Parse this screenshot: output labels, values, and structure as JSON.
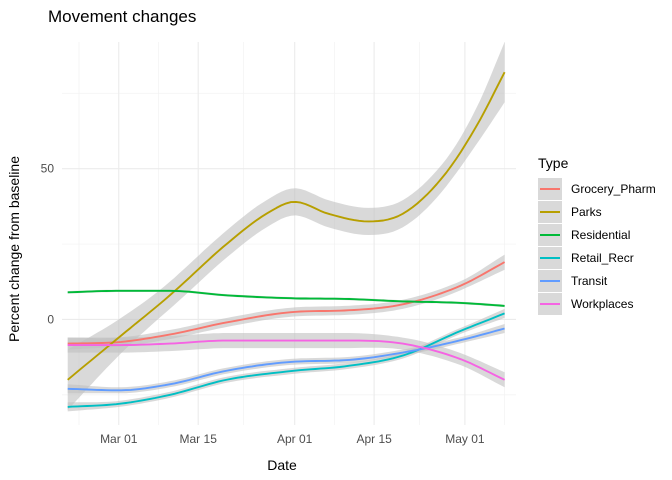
{
  "chart_data": {
    "type": "line",
    "title": "Movement changes",
    "xlabel": "Date",
    "ylabel": "Percent change from baseline",
    "x_type": "date",
    "xlim": [
      "2020-02-20",
      "2020-05-10"
    ],
    "ylim": [
      -35,
      92
    ],
    "x_ticks": [
      {
        "date": "2020-03-01",
        "label": "Mar 01"
      },
      {
        "date": "2020-03-15",
        "label": "Mar 15"
      },
      {
        "date": "2020-04-01",
        "label": "Apr 01"
      },
      {
        "date": "2020-04-15",
        "label": "Apr 15"
      },
      {
        "date": "2020-05-01",
        "label": "May 01"
      }
    ],
    "x_minor_ticks": [
      "2020-02-23",
      "2020-03-08",
      "2020-03-23",
      "2020-04-08",
      "2020-04-23",
      "2020-05-08"
    ],
    "y_ticks": [
      0,
      50
    ],
    "y_minor_ticks": [
      -25,
      25,
      75
    ],
    "grid": true,
    "confidence_band": true,
    "band_color": "#bfbfbf",
    "legend": {
      "title": "Type",
      "position": "right"
    },
    "series": [
      {
        "name": "Grocery_Pharm",
        "color": "#F8766D",
        "x": [
          "2020-02-21",
          "2020-03-01",
          "2020-03-10",
          "2020-03-20",
          "2020-04-01",
          "2020-04-10",
          "2020-04-20",
          "2020-04-30",
          "2020-05-08"
        ],
        "y": [
          -8,
          -7.5,
          -5,
          -1,
          2.5,
          3,
          5,
          11,
          19
        ],
        "band": [
          2,
          1.5,
          1.5,
          1.5,
          1.5,
          1.5,
          1.5,
          1.5,
          2.5
        ]
      },
      {
        "name": "Parks",
        "color": "#B79F00",
        "x": [
          "2020-02-21",
          "2020-03-01",
          "2020-03-10",
          "2020-03-20",
          "2020-03-27",
          "2020-04-01",
          "2020-04-07",
          "2020-04-14",
          "2020-04-20",
          "2020-04-27",
          "2020-05-03",
          "2020-05-08"
        ],
        "y": [
          -20,
          -6,
          8,
          25,
          35,
          39,
          35,
          32.5,
          35,
          47,
          64,
          82
        ],
        "band": [
          10,
          6,
          4.5,
          4.5,
          4.5,
          4.5,
          4.5,
          4.5,
          4.5,
          4.5,
          6,
          10
        ]
      },
      {
        "name": "Residential",
        "color": "#00BA38",
        "x": [
          "2020-02-21",
          "2020-03-01",
          "2020-03-10",
          "2020-03-20",
          "2020-04-01",
          "2020-04-10",
          "2020-04-20",
          "2020-04-30",
          "2020-05-08"
        ],
        "y": [
          9,
          9.5,
          9.5,
          8,
          7,
          6.8,
          6,
          5.5,
          4.5
        ],
        "band": [
          0.4,
          0.4,
          0.4,
          0.4,
          0.4,
          0.4,
          0.4,
          0.4,
          0.4
        ]
      },
      {
        "name": "Retail_Recr",
        "color": "#00BFC4",
        "x": [
          "2020-02-21",
          "2020-03-01",
          "2020-03-10",
          "2020-03-20",
          "2020-04-01",
          "2020-04-10",
          "2020-04-20",
          "2020-04-30",
          "2020-05-08"
        ],
        "y": [
          -29,
          -28,
          -25,
          -20,
          -17,
          -15.5,
          -12,
          -4,
          2
        ],
        "band": [
          1.5,
          1,
          1,
          1,
          1,
          1,
          1,
          1,
          1.5
        ]
      },
      {
        "name": "Transit",
        "color": "#619CFF",
        "x": [
          "2020-02-21",
          "2020-03-01",
          "2020-03-10",
          "2020-03-20",
          "2020-04-01",
          "2020-04-10",
          "2020-04-20",
          "2020-04-30",
          "2020-05-08"
        ],
        "y": [
          -23,
          -23.5,
          -21.5,
          -17,
          -14,
          -13.5,
          -11,
          -7,
          -3
        ],
        "band": [
          1.5,
          1,
          1,
          1,
          1,
          1,
          1,
          1,
          1.5
        ]
      },
      {
        "name": "Workplaces",
        "color": "#F564E3",
        "x": [
          "2020-02-21",
          "2020-03-01",
          "2020-03-10",
          "2020-03-20",
          "2020-04-01",
          "2020-04-10",
          "2020-04-20",
          "2020-04-30",
          "2020-05-08"
        ],
        "y": [
          -8.5,
          -8.5,
          -8,
          -7,
          -7,
          -7,
          -8,
          -13,
          -20
        ],
        "band": [
          2.5,
          2.5,
          2.5,
          2.5,
          2.5,
          2.5,
          2,
          2,
          2.5
        ]
      }
    ]
  }
}
